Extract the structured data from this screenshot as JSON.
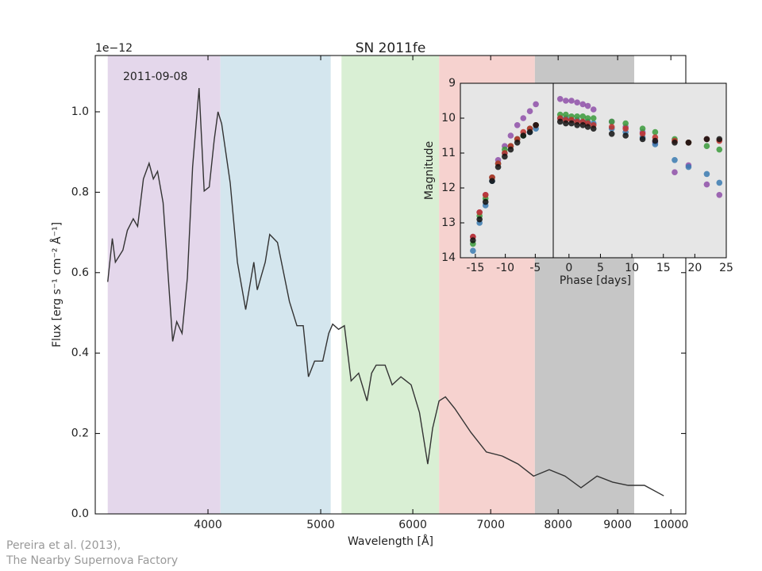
{
  "chart_data": [
    {
      "type": "line",
      "title": "SN 2011fe",
      "offset_label": "1e−12",
      "annotation": "2011-09-08",
      "xlabel": "Wavelength [Å]",
      "ylabel": "Flux [erg s⁻¹ cm⁻² Å⁻¹]",
      "credits": [
        "Pereira et al. (2013),",
        "The Nearby Supernova Factory"
      ],
      "xscale": "log",
      "xlim": [
        3200,
        10300
      ],
      "ylim": [
        0,
        1.14
      ],
      "xticks": [
        4000,
        5000,
        6000,
        7000,
        8000,
        9000,
        10000
      ],
      "yticks": [
        {
          "value": 0,
          "label": "0.0"
        },
        0.2,
        0.4,
        0.6,
        0.8,
        {
          "value": 1,
          "label": "1.0"
        }
      ],
      "spans": [
        {
          "range": [
            3280,
            4100
          ],
          "color": "#e4d7eb"
        },
        {
          "range": [
            4100,
            5100
          ],
          "color": "#d4e6ee"
        },
        {
          "range": [
            5210,
            6320
          ],
          "color": "#d9efd4"
        },
        {
          "range": [
            6320,
            7640
          ],
          "color": "#f6d2cf"
        },
        {
          "range": [
            7640,
            9300
          ],
          "color": "#c6c6c6"
        }
      ],
      "color": "#333333",
      "x": [
        3280,
        3310,
        3330,
        3380,
        3410,
        3450,
        3480,
        3520,
        3560,
        3590,
        3620,
        3660,
        3690,
        3730,
        3760,
        3800,
        3840,
        3880,
        3930,
        3970,
        4010,
        4050,
        4080,
        4110,
        4180,
        4240,
        4310,
        4380,
        4410,
        4480,
        4520,
        4590,
        4700,
        4770,
        4830,
        4880,
        4940,
        5020,
        5080,
        5120,
        5180,
        5240,
        5310,
        5390,
        5480,
        5530,
        5580,
        5680,
        5760,
        5860,
        5980,
        6080,
        6180,
        6240,
        6320,
        6400,
        6520,
        6730,
        6940,
        7160,
        7390,
        7620,
        7860,
        8110,
        8370,
        8640,
        8910,
        9190,
        9490,
        9860
      ],
      "values": [
        0.577,
        0.685,
        0.626,
        0.656,
        0.705,
        0.734,
        0.715,
        0.833,
        0.872,
        0.833,
        0.852,
        0.774,
        0.626,
        0.429,
        0.478,
        0.449,
        0.587,
        0.862,
        1.059,
        0.803,
        0.813,
        0.931,
        1.0,
        0.97,
        0.823,
        0.626,
        0.508,
        0.626,
        0.557,
        0.626,
        0.695,
        0.675,
        0.528,
        0.468,
        0.468,
        0.341,
        0.38,
        0.38,
        0.449,
        0.472,
        0.459,
        0.468,
        0.331,
        0.35,
        0.281,
        0.35,
        0.37,
        0.37,
        0.321,
        0.341,
        0.321,
        0.252,
        0.124,
        0.213,
        0.281,
        0.291,
        0.262,
        0.203,
        0.154,
        0.144,
        0.124,
        0.094,
        0.11,
        0.094,
        0.065,
        0.094,
        0.079,
        0.071,
        0.071,
        0.045
      ]
    },
    {
      "type": "scatter",
      "xlabel": "Phase [days]",
      "ylabel": "Magnitude",
      "ylim": [
        14,
        9
      ],
      "yticks": [
        9,
        10,
        11,
        12,
        13,
        14
      ],
      "panels": [
        {
          "xlim": [
            -17.5,
            -2
          ],
          "xticks": [
            -15,
            -10,
            -5
          ]
        },
        {
          "xlim": [
            -2.5,
            25
          ],
          "xticks": [
            0,
            5,
            10,
            15,
            20,
            25
          ]
        }
      ],
      "x": [
        -15.4,
        -14.3,
        -13.3,
        -12.2,
        -11.2,
        -10.1,
        -9.1,
        -8.0,
        -7.0,
        -5.9,
        -4.9,
        -1.4,
        -0.5,
        0.4,
        1.3,
        2.2,
        3.0,
        3.9,
        6.8,
        9.0,
        11.7,
        13.7,
        16.8,
        19.0,
        21.9,
        23.9
      ],
      "series": [
        {
          "color": "#8e4fa8",
          "values": [
            13.4,
            12.7,
            12.2,
            11.7,
            11.2,
            10.8,
            10.5,
            10.2,
            10.0,
            9.8,
            9.6,
            9.45,
            9.5,
            9.5,
            9.55,
            9.6,
            9.65,
            9.75,
            10.1,
            10.25,
            10.4,
            10.7,
            11.55,
            11.35,
            11.9,
            12.2
          ]
        },
        {
          "color": "#3a7ab0",
          "values": [
            13.8,
            13.0,
            12.5,
            11.8,
            11.3,
            11.0,
            10.8,
            10.6,
            10.5,
            10.4,
            10.3,
            10.0,
            10.0,
            10.05,
            10.05,
            10.1,
            10.1,
            10.15,
            10.3,
            10.4,
            10.55,
            10.75,
            11.2,
            11.4,
            11.6,
            11.85
          ]
        },
        {
          "color": "#3a9a3a",
          "values": [
            13.6,
            12.8,
            12.3,
            11.7,
            11.3,
            10.9,
            10.8,
            10.6,
            10.5,
            10.3,
            10.2,
            9.9,
            9.9,
            9.95,
            9.95,
            9.95,
            10.0,
            10.0,
            10.1,
            10.15,
            10.3,
            10.4,
            10.6,
            10.7,
            10.8,
            10.9
          ]
        },
        {
          "color": "#c0302a",
          "values": [
            13.4,
            12.7,
            12.2,
            11.7,
            11.3,
            11.0,
            10.8,
            10.6,
            10.4,
            10.3,
            10.2,
            10.0,
            10.05,
            10.05,
            10.1,
            10.1,
            10.15,
            10.2,
            10.25,
            10.3,
            10.45,
            10.55,
            10.65,
            10.7,
            10.6,
            10.65
          ]
        },
        {
          "color": "#111111",
          "values": [
            13.5,
            12.9,
            12.4,
            11.8,
            11.4,
            11.1,
            10.9,
            10.7,
            10.5,
            10.4,
            10.2,
            10.1,
            10.15,
            10.15,
            10.2,
            10.2,
            10.25,
            10.3,
            10.45,
            10.5,
            10.6,
            10.65,
            10.7,
            10.7,
            10.6,
            10.6
          ]
        }
      ]
    }
  ]
}
